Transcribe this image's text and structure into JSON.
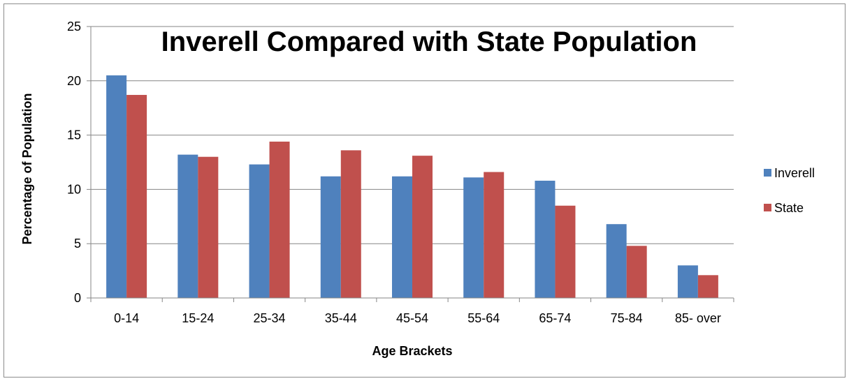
{
  "chart_data": {
    "type": "bar",
    "title": "Inverell Compared with State Population",
    "xlabel": "Age Brackets",
    "ylabel": "Percentage of Population",
    "categories": [
      "0-14",
      "15-24",
      "25-34",
      "35-44",
      "45-54",
      "55-64",
      "65-74",
      "75-84",
      "85- over"
    ],
    "series": [
      {
        "name": "Inverell",
        "color": "#4f81bd",
        "values": [
          20.5,
          13.2,
          12.3,
          11.2,
          11.2,
          11.1,
          10.8,
          6.8,
          3.0
        ]
      },
      {
        "name": "State",
        "color": "#c0504d",
        "values": [
          18.7,
          13.0,
          14.4,
          13.6,
          13.1,
          11.6,
          8.5,
          4.8,
          2.1
        ]
      }
    ],
    "ylim": [
      0,
      25
    ],
    "yticks": [
      0,
      5,
      10,
      15,
      20,
      25
    ],
    "grid": true,
    "legend_position": "right"
  }
}
